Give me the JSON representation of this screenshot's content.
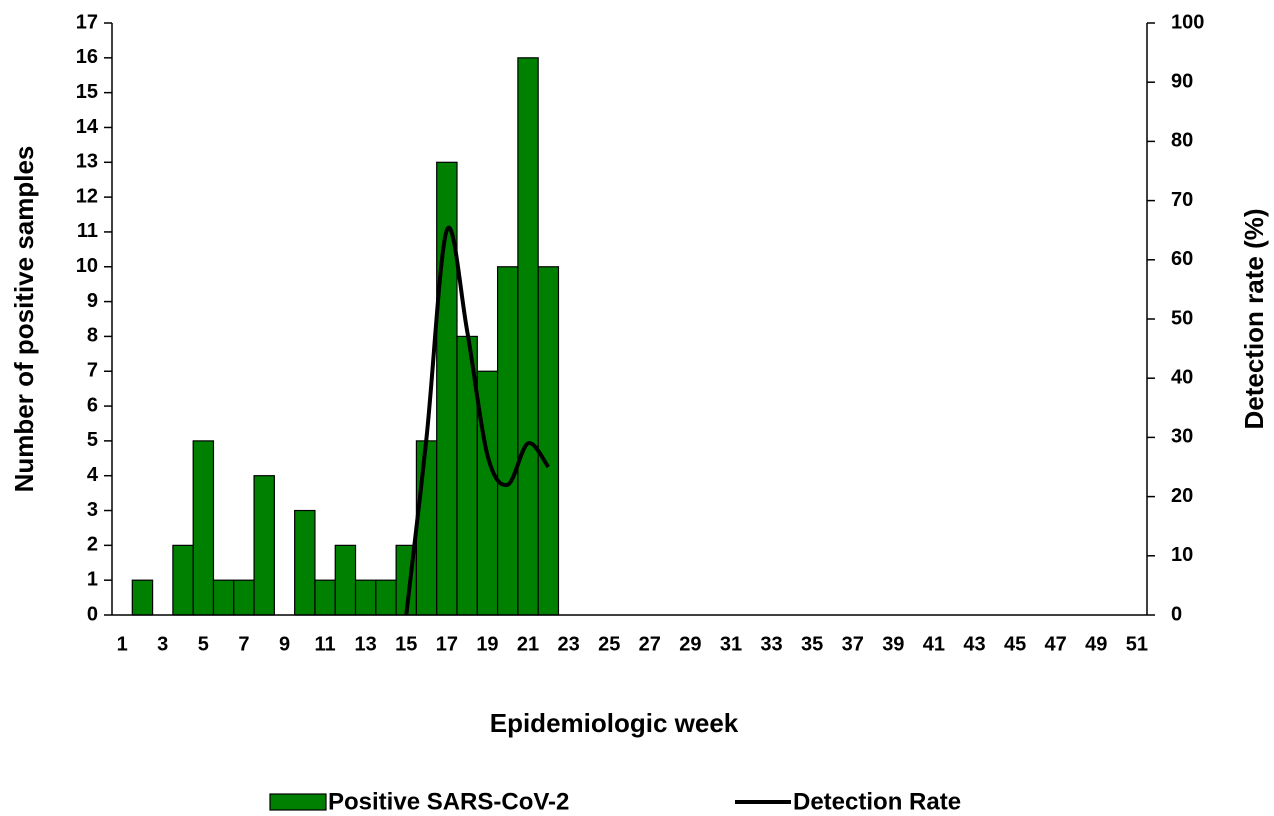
{
  "chart_data": {
    "type": "bar",
    "x_label": "Epidemiologic week",
    "y_label": "Number of positive samples",
    "y2_label": "Detection rate (%)",
    "categories": [
      1,
      null,
      3,
      null,
      5,
      null,
      7,
      null,
      9,
      null,
      11,
      null,
      13,
      null,
      15,
      null,
      17,
      null,
      19,
      null,
      21,
      null,
      23,
      null,
      25,
      null,
      27,
      null,
      29,
      null,
      31,
      null,
      33,
      null,
      35,
      null,
      37,
      null,
      39,
      null,
      41,
      null,
      43,
      null,
      45,
      null,
      47,
      null,
      49,
      null,
      51
    ],
    "series": [
      {
        "name": "Positive SARS-CoV-2",
        "type": "bar",
        "color": "#008000",
        "values": [
          0,
          1,
          0,
          2,
          5,
          1,
          1,
          4,
          0,
          3,
          1,
          2,
          1,
          1,
          2,
          5,
          13,
          8,
          7,
          10,
          16,
          10,
          null,
          null,
          null,
          null,
          null,
          null,
          null,
          null,
          null,
          null,
          null,
          null,
          null,
          null,
          null,
          null,
          null,
          null,
          null,
          null,
          null,
          null,
          null,
          null,
          null,
          null,
          null,
          null,
          null
        ]
      },
      {
        "name": "Detection Rate",
        "type": "line",
        "axis": "y2",
        "color": "#000000",
        "values": [
          null,
          null,
          null,
          null,
          null,
          null,
          null,
          null,
          null,
          null,
          null,
          null,
          null,
          null,
          0,
          30,
          65,
          48,
          27,
          22,
          29,
          25,
          null,
          null,
          null,
          null,
          null,
          null,
          null,
          null,
          null,
          null,
          null,
          null,
          null,
          null,
          null,
          null,
          null,
          null,
          null,
          null,
          null,
          null,
          null,
          null,
          null,
          null,
          null,
          null,
          null
        ]
      }
    ],
    "ylim": [
      0,
      17
    ],
    "yticks": [
      0,
      1,
      2,
      3,
      4,
      5,
      6,
      7,
      8,
      9,
      10,
      11,
      12,
      13,
      14,
      15,
      16,
      17
    ],
    "y2lim": [
      0,
      100
    ],
    "y2ticks": [
      0,
      10,
      20,
      30,
      40,
      50,
      60,
      70,
      80,
      90,
      100
    ],
    "grid": false,
    "legend": "bottom"
  }
}
